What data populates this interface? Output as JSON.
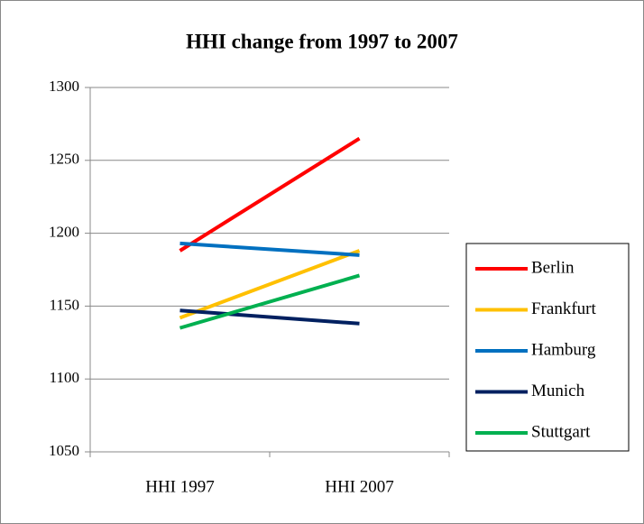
{
  "chart_data": {
    "type": "line",
    "title": "HHI change from 1997 to 2007",
    "categories": [
      "HHI 1997",
      "HHI 2007"
    ],
    "series": [
      {
        "name": "Berlin",
        "color": "#ff0000",
        "values": [
          1188,
          1265
        ]
      },
      {
        "name": "Frankfurt",
        "color": "#ffc000",
        "values": [
          1142,
          1188
        ]
      },
      {
        "name": "Hamburg",
        "color": "#0070c0",
        "values": [
          1193,
          1185
        ]
      },
      {
        "name": "Munich",
        "color": "#002060",
        "values": [
          1147,
          1138
        ]
      },
      {
        "name": "Stuttgart",
        "color": "#00b050",
        "values": [
          1135,
          1171
        ]
      }
    ],
    "ylim": [
      1050,
      1300
    ],
    "yticks": [
      1050,
      1100,
      1150,
      1200,
      1250,
      1300
    ],
    "grid": true,
    "legend": "right"
  }
}
